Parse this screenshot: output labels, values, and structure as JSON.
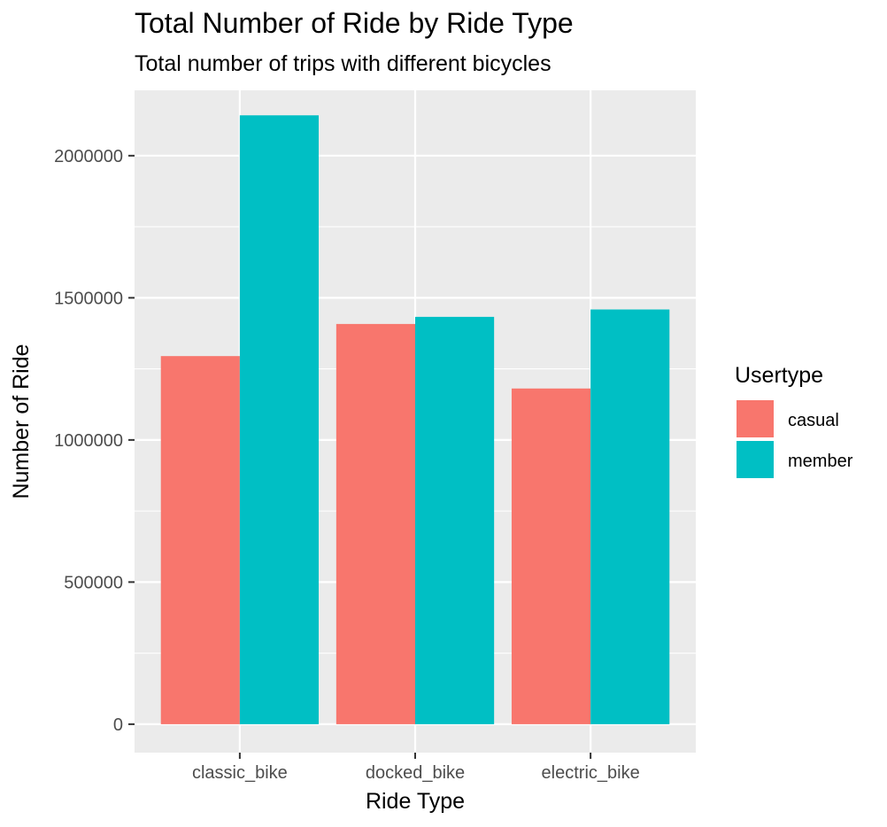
{
  "chart_data": {
    "type": "bar",
    "title": "Total Number of Ride by Ride Type",
    "subtitle": "Total number of trips with different bicycles",
    "xlabel": "Ride Type",
    "ylabel": "Number of Ride",
    "categories": [
      "classic_bike",
      "docked_bike",
      "electric_bike"
    ],
    "series": [
      {
        "name": "casual",
        "color": "#F8766D",
        "values": [
          1295000,
          1408000,
          1181000
        ]
      },
      {
        "name": "member",
        "color": "#00BFC4",
        "values": [
          2142000,
          1433000,
          1459000
        ]
      }
    ],
    "ylim": [
      -100000,
      2230000
    ],
    "yticks": [
      0,
      500000,
      1000000,
      1500000,
      2000000
    ],
    "ytick_labels": [
      "0",
      "500000",
      "1000000",
      "1500000",
      "2000000"
    ],
    "grid": true,
    "legend": {
      "title": "Usertype",
      "placement": "right"
    },
    "panel_background": "#EBEBEB"
  }
}
